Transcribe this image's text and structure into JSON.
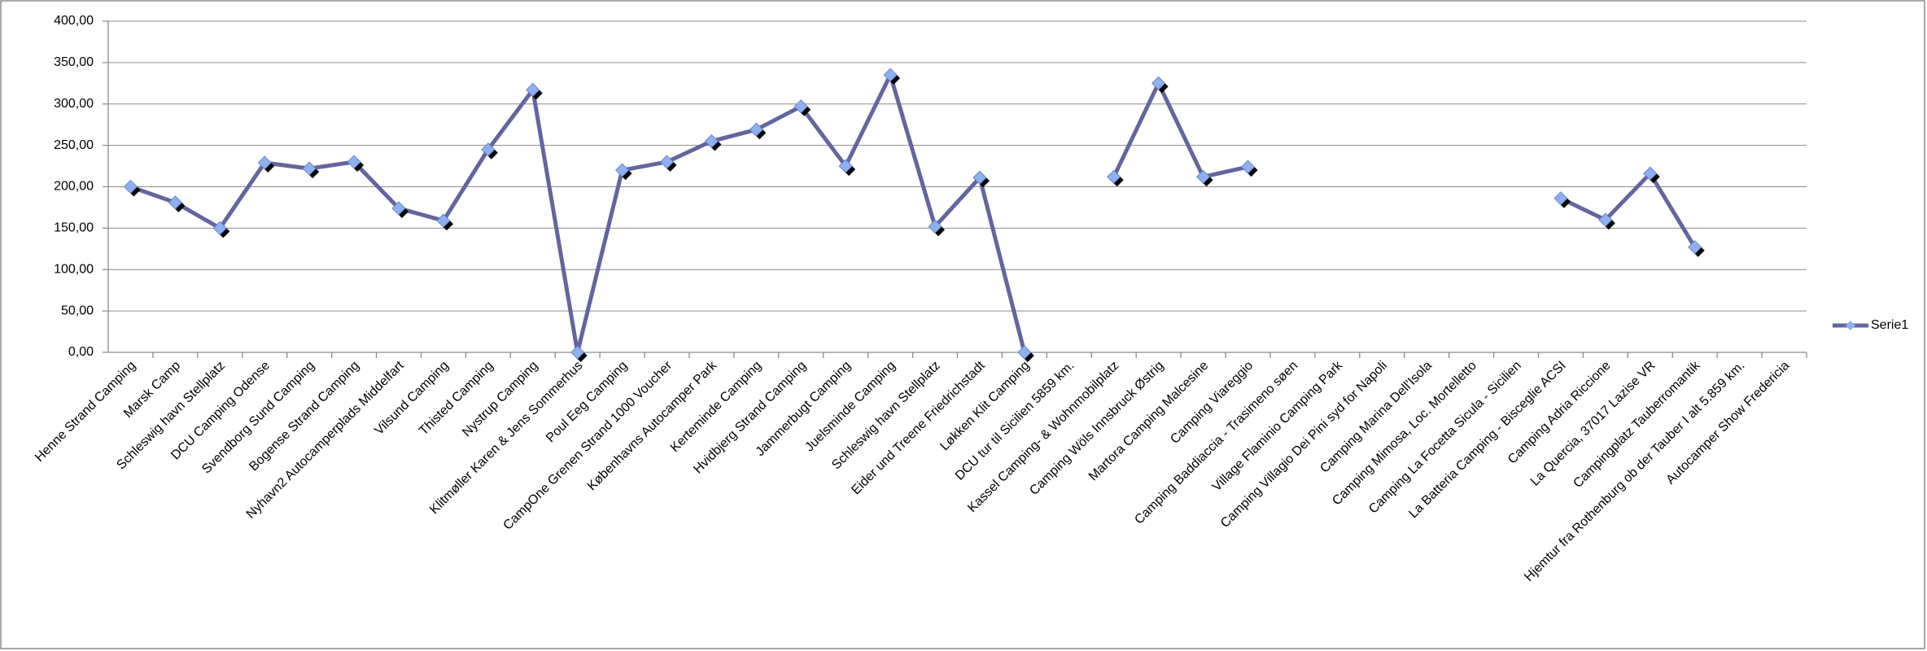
{
  "chart_data": {
    "type": "line",
    "categories": [
      "Henne Strand Camping",
      "Marsk Camp",
      "Schleswig havn Stellplatz",
      "DCU Camping Odense",
      "Svendborg Sund Camping",
      "Bogense Strand Camping",
      "Nyhavn2 Autocamperplads Middelfart",
      "Vilsund Camping",
      "Thisted Camping",
      "Nystrup Camping",
      "Klitmøller Karen & Jens Sommerhus",
      "Poul Eeg Camping",
      "CampOne Grenen Strand 1000 Voucher",
      "Københavns Autocamper Park",
      "Kerteminde Camping",
      "Hvidbjerg Strand Camping",
      "Jammerbugt Camping",
      "Juelsminde Camping",
      "Schleswig havn Stellplatz",
      "Eider und Treene Friedrichstadt",
      "Løkken Klit Camping",
      "DCU tur til Sicilien 5859 km.",
      "Kassel Camping- & Wohnmobilplatz",
      "Camping Wöls Innsbruck Østrig",
      "Martora Camping Malcesine",
      "Camping Viareggio",
      "Camping Baddiaccia - Trasimeno søen",
      "Village Flaminio Camping Park",
      "Camping Villagio Dei Pini syd for Napoli",
      "Camping Marina Dell'Isola",
      "Camping Mimosa, Loc. Mortelletto",
      "Camping La Focetta Sicula - Sicilien",
      "La Batteria Camping - Bisceglie ACSI",
      "Camping Adria Riccione",
      "La Quercia, 37017 Lazise VR",
      "Campingplatz Tauberromantik",
      "Hjemtur fra Rothenburg ob der Tauber I alt 5.859 km.",
      "Autocamper Show Fredericia"
    ],
    "series": [
      {
        "name": "Serie1",
        "color": "#6464a0",
        "marker_color": "#8db0f0",
        "values": [
          200,
          181,
          150,
          229,
          222,
          230,
          174,
          159,
          245,
          317,
          0,
          220,
          230,
          255,
          269,
          297,
          225,
          335,
          152,
          211,
          0,
          null,
          212,
          325,
          212,
          224,
          null,
          null,
          null,
          null,
          null,
          null,
          186,
          160,
          216,
          127,
          null,
          null
        ]
      }
    ],
    "ylim": [
      0,
      400
    ],
    "yticks": [
      {
        "value": 0,
        "label": "0,00"
      },
      {
        "value": 50,
        "label": "50,00"
      },
      {
        "value": 100,
        "label": "100,00"
      },
      {
        "value": 150,
        "label": "150,00"
      },
      {
        "value": 200,
        "label": "200,00"
      },
      {
        "value": 250,
        "label": "250,00"
      },
      {
        "value": 300,
        "label": "300,00"
      },
      {
        "value": 350,
        "label": "350,00"
      },
      {
        "value": 400,
        "label": "400,00"
      }
    ],
    "grid": true,
    "legend": "right"
  }
}
